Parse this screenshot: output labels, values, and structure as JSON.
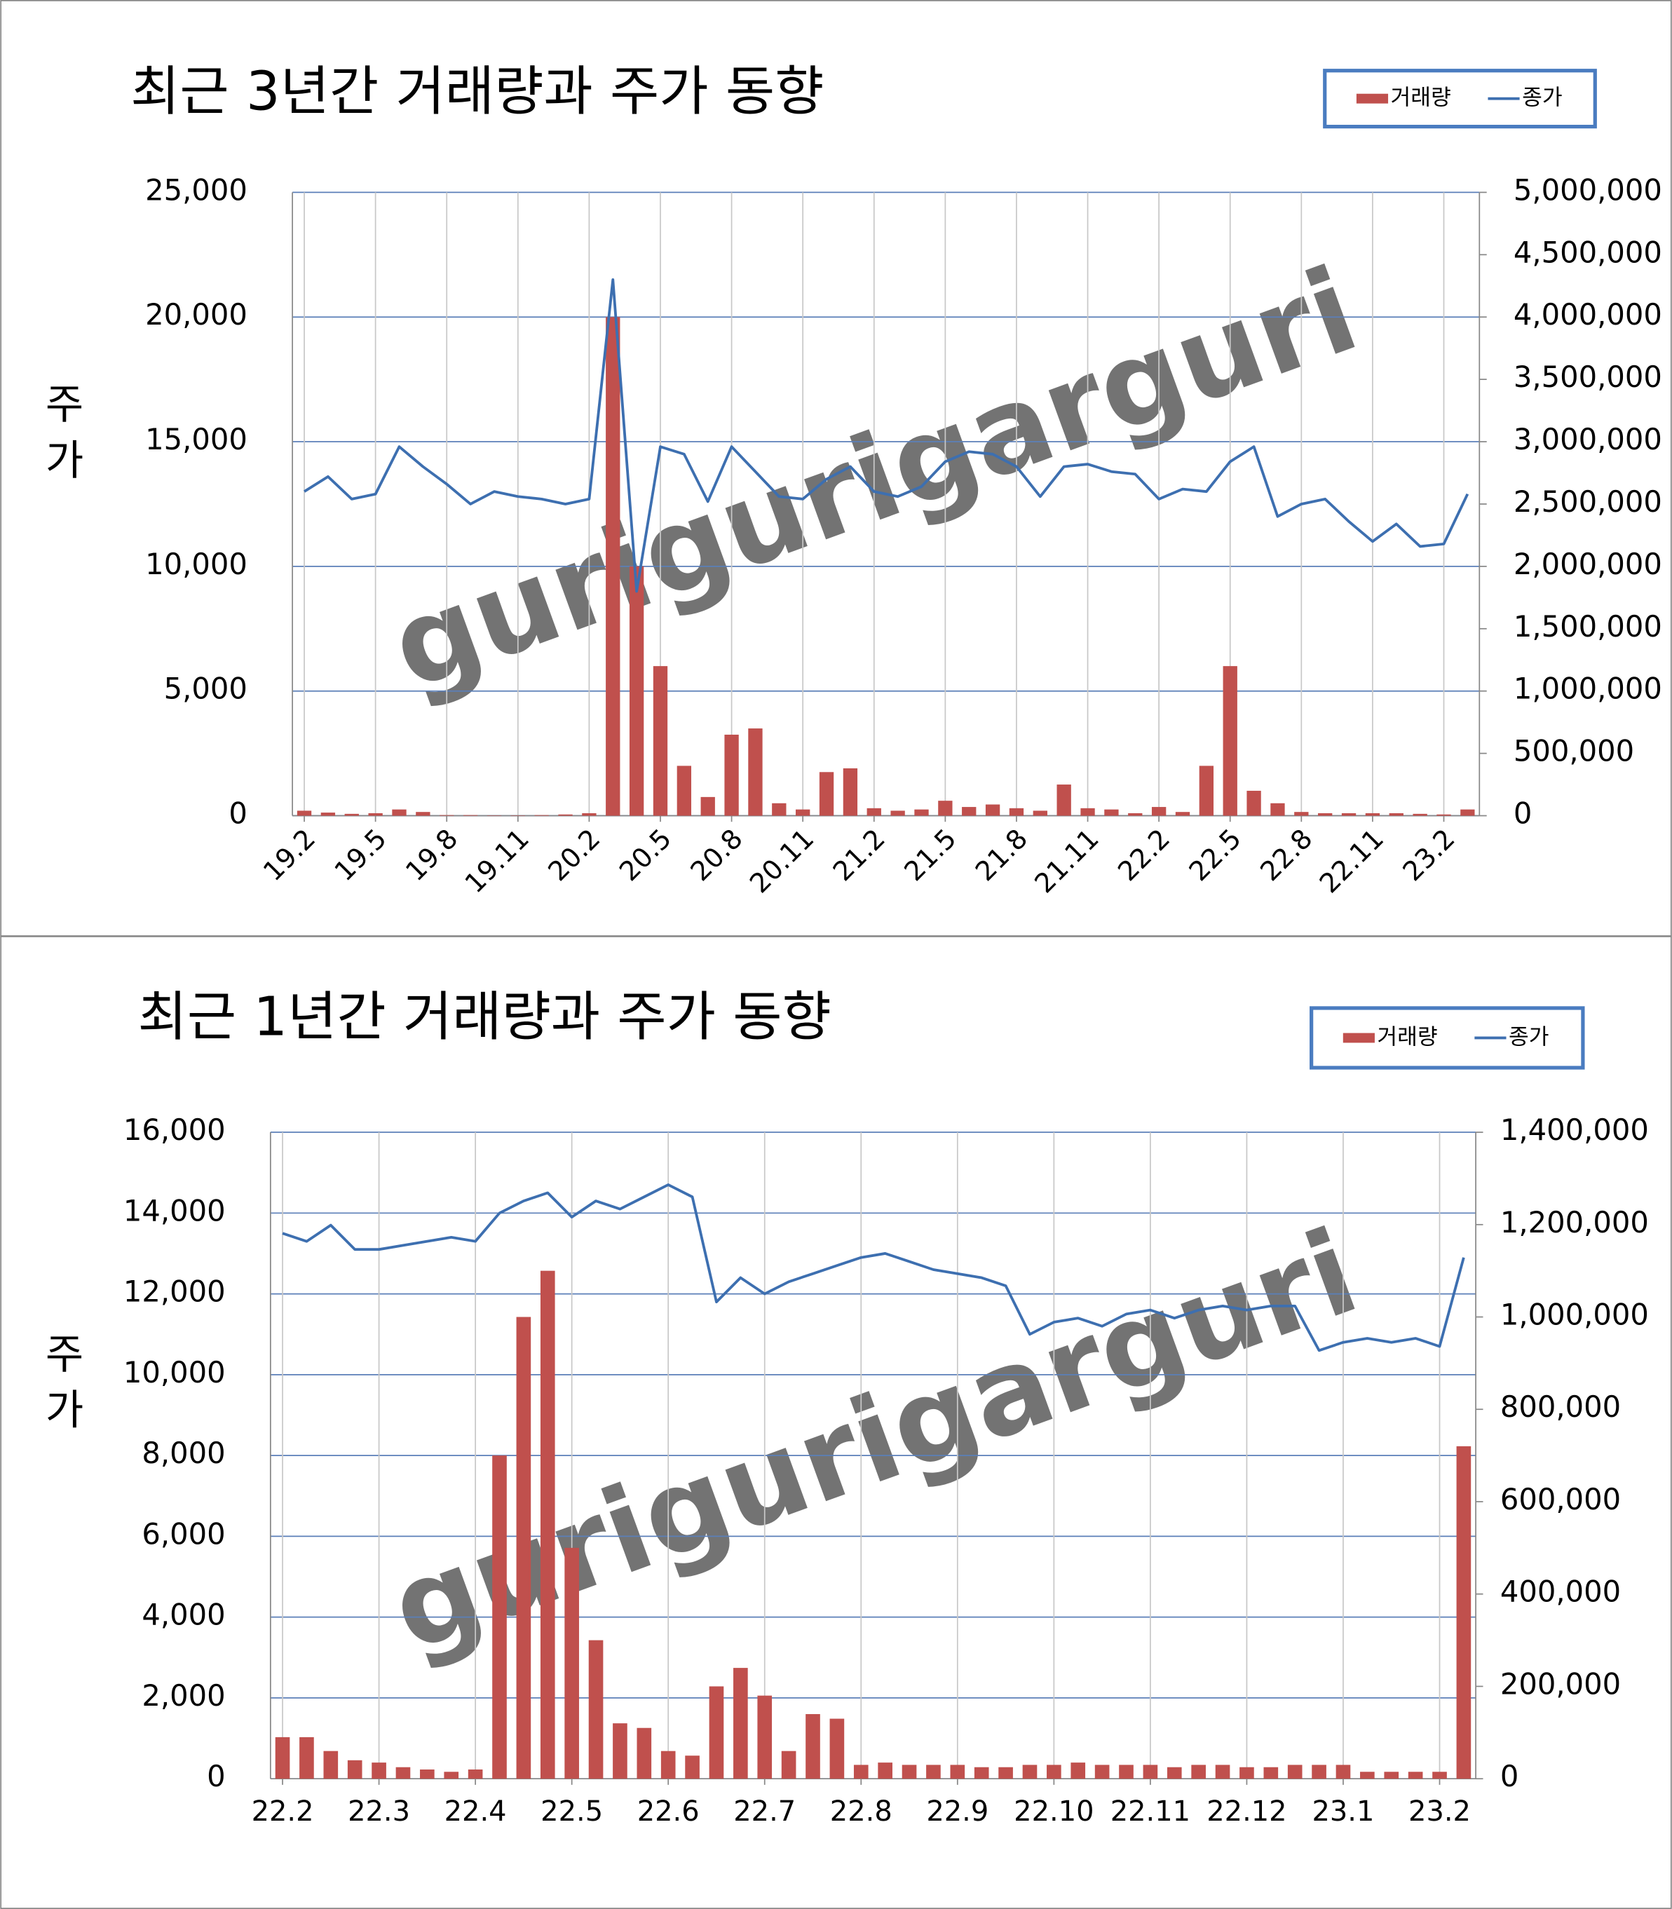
{
  "chart_data": [
    {
      "type": "combo",
      "title": "최근 3년간 거래량과 주가 동향",
      "y_label": "주가",
      "watermark": "gurigurigarguri",
      "categories": [
        "19.2",
        null,
        null,
        "19.5",
        null,
        null,
        "19.8",
        null,
        null,
        "19.11",
        null,
        null,
        "20.2",
        null,
        null,
        "20.5",
        null,
        null,
        "20.8",
        null,
        null,
        "20.11",
        null,
        null,
        "21.2",
        null,
        null,
        "21.5",
        null,
        null,
        "21.8",
        null,
        null,
        "21.11",
        null,
        null,
        "22.2",
        null,
        null,
        "22.5",
        null,
        null,
        "22.8",
        null,
        null,
        "22.11",
        null,
        null,
        "23.2",
        null
      ],
      "series": [
        {
          "name": "거래량",
          "type": "bar",
          "axis": "y2",
          "color": "#c0504d",
          "values": [
            40000,
            25000,
            15000,
            20000,
            50000,
            30000,
            5000,
            5000,
            3000,
            3000,
            5000,
            10000,
            20000,
            4000000,
            2000000,
            1200000,
            400000,
            150000,
            650000,
            700000,
            100000,
            50000,
            350000,
            380000,
            60000,
            40000,
            50000,
            120000,
            70000,
            90000,
            60000,
            40000,
            250000,
            60000,
            50000,
            20000,
            70000,
            30000,
            400000,
            1200000,
            200000,
            100000,
            30000,
            20000,
            20000,
            20000,
            20000,
            15000,
            10000,
            50000
          ]
        },
        {
          "name": "종가",
          "type": "line",
          "color": "#3d6fb0",
          "values": [
            13000,
            13600,
            12700,
            12900,
            14800,
            14000,
            13300,
            12500,
            13000,
            12800,
            12700,
            12500,
            12700,
            21500,
            9000,
            14800,
            14500,
            12600,
            14800,
            13800,
            12800,
            12700,
            13500,
            14000,
            13000,
            12800,
            13200,
            14200,
            14600,
            14500,
            14000,
            12800,
            14000,
            14100,
            13800,
            13700,
            12700,
            13100,
            13000,
            14200,
            14800,
            12000,
            12500,
            12700,
            11800,
            11000,
            11700,
            10800,
            10900,
            12900
          ]
        }
      ],
      "ylim": [
        0,
        25000
      ],
      "yticks": [
        0,
        {
          "value": 5000,
          "label": "5,000"
        },
        {
          "value": 10000,
          "label": "10,000"
        },
        {
          "value": 15000,
          "label": "15,000"
        },
        {
          "value": 20000,
          "label": "20,000"
        },
        {
          "value": 25000,
          "label": "25,000"
        }
      ],
      "y2lim": [
        0,
        5000000
      ],
      "y2ticks": [
        0,
        {
          "value": 500000,
          "label": "500,000"
        },
        {
          "value": 1000000,
          "label": "1,000,000"
        },
        {
          "value": 1500000,
          "label": "1,500,000"
        },
        {
          "value": 2000000,
          "label": "2,000,000"
        },
        {
          "value": 2500000,
          "label": "2,500,000"
        },
        {
          "value": 3000000,
          "label": "3,000,000"
        },
        {
          "value": 3500000,
          "label": "3,500,000"
        },
        {
          "value": 4000000,
          "label": "4,000,000"
        },
        {
          "value": 4500000,
          "label": "4,500,000"
        },
        {
          "value": 5000000,
          "label": "5,000,000"
        }
      ],
      "grid": true,
      "legend": "top-right"
    },
    {
      "type": "combo",
      "title": "최근 1년간 거래량과 주가 동향",
      "y_label": "주가",
      "watermark": "gurigurigarguri",
      "categories": [
        "22.2",
        null,
        null,
        null,
        "22.3",
        null,
        null,
        null,
        "22.4",
        null,
        null,
        null,
        "22.5",
        null,
        null,
        null,
        "22.6",
        null,
        null,
        null,
        "22.7",
        null,
        null,
        null,
        "22.8",
        null,
        null,
        null,
        "22.9",
        null,
        null,
        null,
        "22.10",
        null,
        null,
        null,
        "22.11",
        null,
        null,
        null,
        "22.12",
        null,
        null,
        null,
        "23.1",
        null,
        null,
        null,
        "23.2",
        null
      ],
      "series": [
        {
          "name": "거래량",
          "type": "bar",
          "axis": "y2",
          "color": "#c0504d",
          "values": [
            90000,
            90000,
            60000,
            40000,
            35000,
            25000,
            20000,
            15000,
            20000,
            700000,
            1000000,
            1100000,
            500000,
            300000,
            120000,
            110000,
            60000,
            50000,
            200000,
            240000,
            180000,
            60000,
            140000,
            130000,
            30000,
            35000,
            30000,
            30000,
            30000,
            25000,
            25000,
            30000,
            30000,
            35000,
            30000,
            30000,
            30000,
            25000,
            30000,
            30000,
            25000,
            25000,
            30000,
            30000,
            30000,
            15000,
            15000,
            15000,
            15000,
            720000
          ]
        },
        {
          "name": "종가",
          "type": "line",
          "color": "#3d6fb0",
          "values": [
            13500,
            13300,
            13700,
            13100,
            13100,
            13200,
            13300,
            13400,
            13300,
            14000,
            14300,
            14500,
            13900,
            14300,
            14100,
            14400,
            14700,
            14400,
            11800,
            12400,
            12000,
            12300,
            12500,
            12700,
            12900,
            13000,
            12800,
            12600,
            12500,
            12400,
            12200,
            11000,
            11300,
            11400,
            11200,
            11500,
            11600,
            11400,
            11600,
            11700,
            11600,
            11700,
            11700,
            10600,
            10800,
            10900,
            10800,
            10900,
            10700,
            12900
          ]
        }
      ],
      "ylim": [
        0,
        16000
      ],
      "yticks": [
        0,
        {
          "value": 2000,
          "label": "2,000"
        },
        {
          "value": 4000,
          "label": "4,000"
        },
        {
          "value": 6000,
          "label": "6,000"
        },
        {
          "value": 8000,
          "label": "8,000"
        },
        {
          "value": 10000,
          "label": "10,000"
        },
        {
          "value": 12000,
          "label": "12,000"
        },
        {
          "value": 14000,
          "label": "14,000"
        },
        {
          "value": 16000,
          "label": "16,000"
        }
      ],
      "y2lim": [
        0,
        1400000
      ],
      "y2ticks": [
        0,
        {
          "value": 200000,
          "label": "200,000"
        },
        {
          "value": 400000,
          "label": "400,000"
        },
        {
          "value": 600000,
          "label": "600,000"
        },
        {
          "value": 800000,
          "label": "800,000"
        },
        {
          "value": 1000000,
          "label": "1,000,000"
        },
        {
          "value": 1200000,
          "label": "1,200,000"
        },
        {
          "value": 1400000,
          "label": "1,400,000"
        }
      ],
      "grid": true,
      "legend": "top-right"
    }
  ]
}
